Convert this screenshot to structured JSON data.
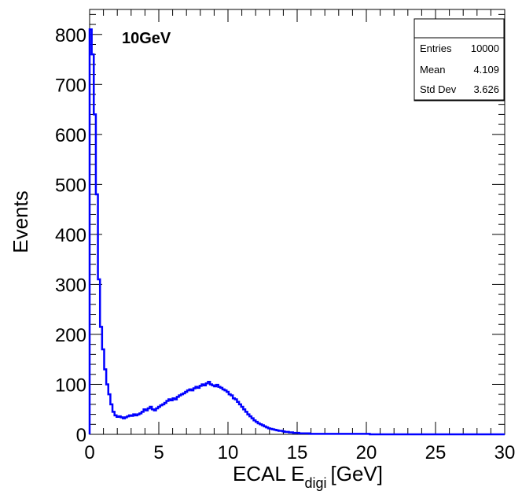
{
  "chart_data": {
    "type": "histogram",
    "annotation": "10GeV",
    "xlabel_main": "ECAL E",
    "xlabel_sub": "digi",
    "xlabel_unit": "[GeV]",
    "ylabel": "Events",
    "xlim": [
      0,
      30
    ],
    "ylim": [
      0,
      850
    ],
    "x_ticks": [
      0,
      5,
      10,
      15,
      20,
      25,
      30
    ],
    "y_ticks": [
      0,
      100,
      200,
      300,
      400,
      500,
      600,
      700,
      800
    ],
    "grid": false,
    "series_color": "#0000ff",
    "bin_width": 0.15,
    "bins_start": 0.0,
    "values": [
      810,
      760,
      640,
      480,
      310,
      215,
      170,
      130,
      100,
      80,
      60,
      45,
      38,
      35,
      36,
      34,
      32,
      34,
      36,
      38,
      37,
      40,
      38,
      40,
      42,
      45,
      50,
      48,
      52,
      55,
      50,
      48,
      52,
      55,
      58,
      60,
      63,
      67,
      70,
      68,
      72,
      70,
      75,
      78,
      80,
      82,
      85,
      88,
      90,
      88,
      92,
      95,
      93,
      97,
      100,
      98,
      102,
      105,
      100,
      98,
      96,
      99,
      95,
      93,
      90,
      88,
      85,
      80,
      78,
      72,
      70,
      65,
      60,
      55,
      50,
      45,
      40,
      36,
      32,
      28,
      25,
      22,
      20,
      18,
      16,
      14,
      12,
      11,
      10,
      9,
      8,
      7,
      7,
      6,
      5,
      5,
      4,
      4,
      3,
      3,
      3,
      2,
      2,
      2,
      2,
      2,
      1,
      1,
      1,
      1,
      1,
      1,
      1,
      1,
      1,
      1,
      1,
      1,
      1,
      1,
      1,
      1,
      1,
      1,
      1,
      1,
      1,
      1,
      1,
      1,
      1,
      1,
      1,
      1,
      1,
      0,
      0,
      0,
      0,
      0,
      0,
      0,
      0,
      0,
      0,
      0,
      0,
      0,
      0,
      0,
      0,
      0,
      0,
      0,
      0,
      0,
      0,
      0,
      0,
      0,
      0,
      0,
      0,
      0,
      0,
      0,
      0,
      0,
      0,
      0,
      0,
      0,
      0,
      0,
      0,
      0,
      0,
      0,
      0,
      0,
      0,
      0,
      0,
      0,
      0,
      0,
      0,
      0,
      0,
      0,
      0,
      0,
      0,
      0,
      0,
      0,
      0,
      0,
      0,
      0
    ],
    "stats": {
      "entries_label": "Entries",
      "entries_value": "10000",
      "mean_label": "Mean",
      "mean_value": "4.109",
      "std_label": "Std Dev",
      "std_value": "3.626"
    }
  }
}
